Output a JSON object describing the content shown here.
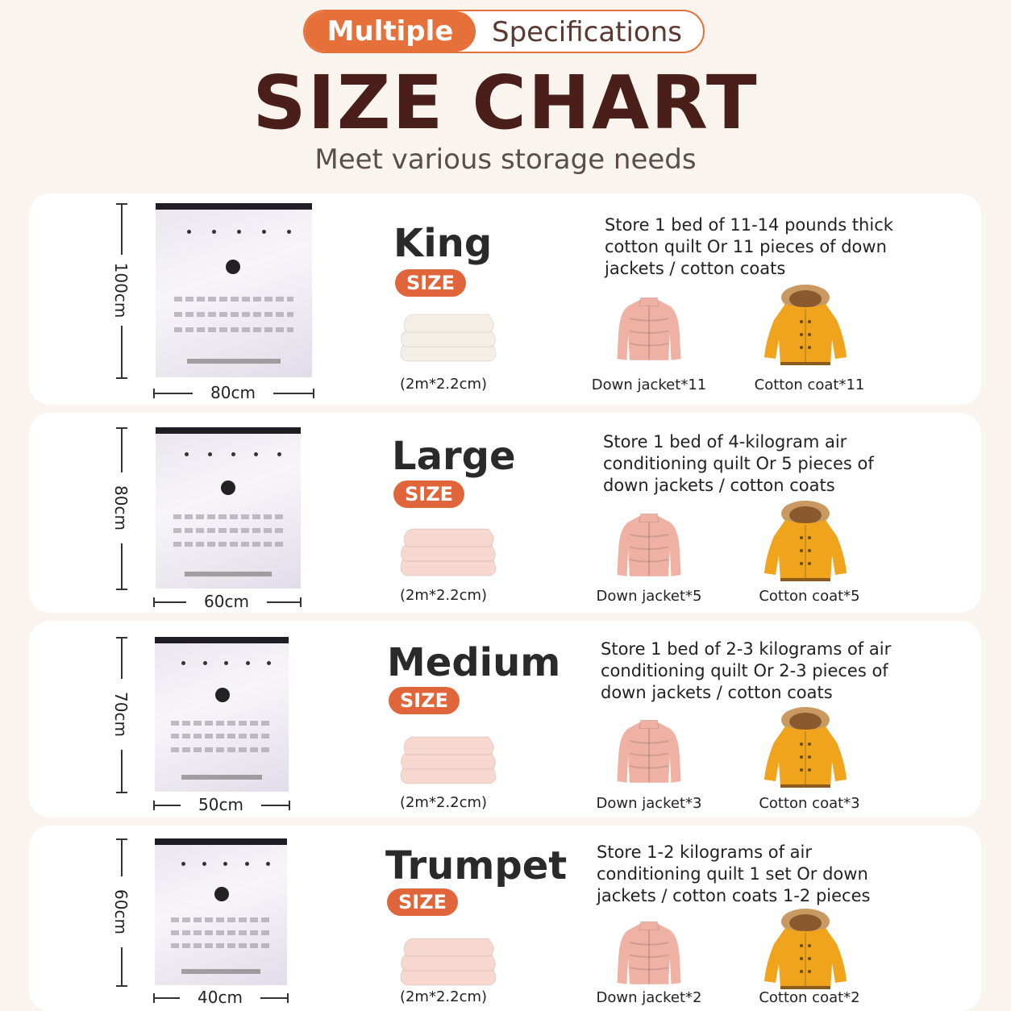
{
  "header": {
    "pill_left": "Multiple",
    "pill_right": "Specifications",
    "title": "SIZE CHART",
    "subtitle": "Meet various storage needs"
  },
  "size_tag": "SIZE",
  "rows": [
    {
      "name": "King",
      "height_label": "100cm",
      "width_label": "80cm",
      "quilt_caption": "(2m*2.2cm)",
      "description": "Store 1 bed of 11-14 pounds thick cotton quilt Or 11 pieces of down jackets / cotton coats",
      "down_caption": "Down jacket*11",
      "coat_caption": "Cotton coat*11",
      "quilt_color": "#f3efe6"
    },
    {
      "name": "Large",
      "height_label": "80cm",
      "width_label": "60cm",
      "quilt_caption": "(2m*2.2cm)",
      "description": "Store 1 bed of 4-kilogram air conditioning quilt Or 5 pieces of down jackets / cotton coats",
      "down_caption": "Down jacket*5",
      "coat_caption": "Cotton coat*5",
      "quilt_color": "#f6d8cf"
    },
    {
      "name": "Medium",
      "height_label": "70cm",
      "width_label": "50cm",
      "quilt_caption": "(2m*2.2cm)",
      "description": "Store 1 bed of 2-3 kilograms of air conditioning quilt Or 2-3 pieces of down jackets / cotton coats",
      "down_caption": "Down jacket*3",
      "coat_caption": "Cotton coat*3",
      "quilt_color": "#f6d8cf"
    },
    {
      "name": "Trumpet",
      "height_label": "60cm",
      "width_label": "40cm",
      "quilt_caption": "(2m*2.2cm)",
      "description": "Store 1-2 kilograms of air conditioning quilt 1 set Or down jackets / cotton coats 1-2 pieces",
      "down_caption": "Down jacket*2",
      "coat_caption": "Cotton coat*2",
      "quilt_color": "#f6d8cf"
    }
  ],
  "colors": {
    "accent": "#e5703a",
    "title": "#4a1f1a",
    "jacket_pink": "#eeb1a4",
    "coat_yellow": "#f0a41e"
  }
}
